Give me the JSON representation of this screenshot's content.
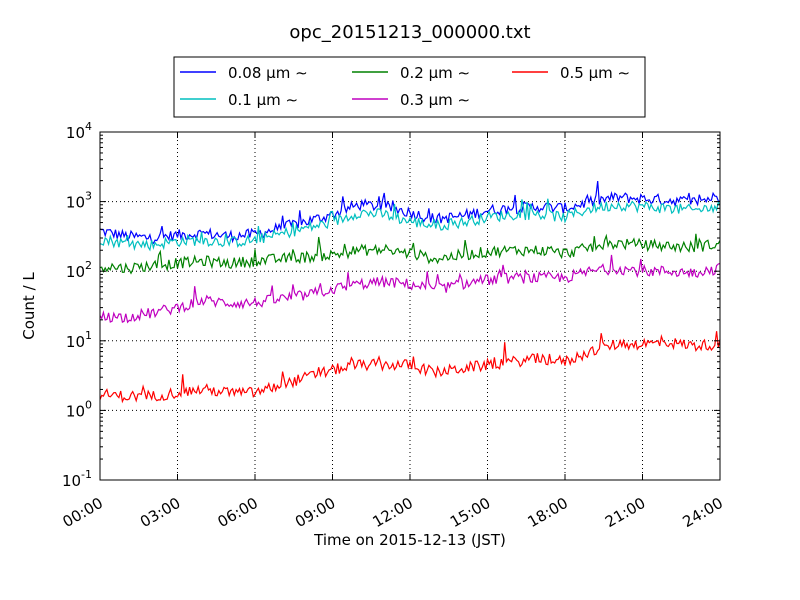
{
  "chart_data": {
    "type": "line",
    "title": "opc_20151213_000000.txt",
    "xlabel": "Time on 2015-12-13 (JST)",
    "ylabel": "Count / L",
    "yscale": "log",
    "ylim": [
      0.1,
      10000
    ],
    "xlim": [
      0,
      24
    ],
    "grid": true,
    "legend_position": "top-center",
    "x_ticks": [
      {
        "value": 0,
        "label": "00:00"
      },
      {
        "value": 3,
        "label": "03:00"
      },
      {
        "value": 6,
        "label": "06:00"
      },
      {
        "value": 9,
        "label": "09:00"
      },
      {
        "value": 12,
        "label": "12:00"
      },
      {
        "value": 15,
        "label": "15:00"
      },
      {
        "value": 18,
        "label": "18:00"
      },
      {
        "value": 21,
        "label": "21:00"
      },
      {
        "value": 24,
        "label": "24:00"
      }
    ],
    "y_ticks": [
      {
        "value": 0.1,
        "base": "10",
        "exp": "-1"
      },
      {
        "value": 1,
        "base": "10",
        "exp": "0"
      },
      {
        "value": 10,
        "base": "10",
        "exp": "1"
      },
      {
        "value": 100,
        "base": "10",
        "exp": "2"
      },
      {
        "value": 1000,
        "base": "10",
        "exp": "3"
      },
      {
        "value": 10000,
        "base": "10",
        "exp": "4"
      }
    ],
    "series_hours": [
      0,
      1,
      2,
      3,
      4,
      5,
      6,
      7,
      8,
      9,
      10,
      11,
      12,
      13,
      14,
      15,
      16,
      17,
      18,
      19,
      20,
      21,
      22,
      23,
      24
    ],
    "series": [
      {
        "name": "0.08 μm ∼",
        "color": "#0000ff",
        "values": [
          380,
          320,
          300,
          330,
          350,
          320,
          340,
          420,
          520,
          650,
          900,
          850,
          700,
          560,
          620,
          750,
          800,
          850,
          800,
          1000,
          1150,
          1100,
          1050,
          1000,
          1200
        ]
      },
      {
        "name": "0.1 μm ∼",
        "color": "#00bfbf",
        "values": [
          290,
          250,
          240,
          270,
          280,
          260,
          280,
          340,
          420,
          500,
          700,
          650,
          520,
          450,
          500,
          600,
          650,
          650,
          600,
          800,
          900,
          850,
          800,
          750,
          850
        ]
      },
      {
        "name": "0.2 μm ∼",
        "color": "#008000",
        "values": [
          120,
          110,
          120,
          130,
          140,
          130,
          140,
          150,
          160,
          170,
          200,
          200,
          180,
          150,
          170,
          190,
          200,
          200,
          180,
          220,
          250,
          240,
          230,
          220,
          250
        ]
      },
      {
        "name": "0.3 μm ∼",
        "color": "#bf00bf",
        "values": [
          22,
          22,
          25,
          30,
          38,
          35,
          35,
          40,
          45,
          55,
          65,
          70,
          65,
          55,
          65,
          75,
          80,
          80,
          80,
          100,
          110,
          100,
          100,
          95,
          110
        ]
      },
      {
        "name": "0.5 μm ∼",
        "color": "#ff0000",
        "values": [
          1.7,
          1.6,
          1.6,
          1.8,
          2.0,
          1.8,
          1.8,
          2.3,
          3.0,
          3.8,
          4.5,
          4.5,
          4.5,
          3.5,
          4.0,
          4.5,
          5.0,
          5.5,
          5.0,
          7.0,
          9.0,
          9.0,
          9.5,
          8.5,
          9.0
        ]
      }
    ]
  }
}
